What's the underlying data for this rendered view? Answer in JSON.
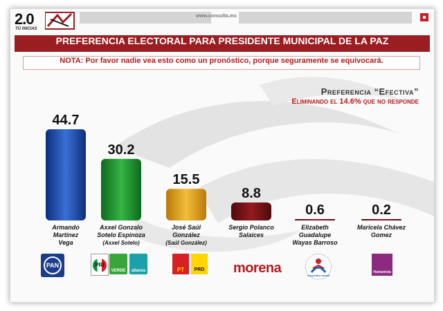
{
  "header": {
    "logo_number": "2.0",
    "logo_sub": "TÚ INICIAS",
    "url": "www.consulta.mx"
  },
  "title": "PREFERENCIA ELECTORAL PARA PRESIDENTE MUNICIPAL DE LA PAZ",
  "note": "NOTA: Por favor nadie vea esto como un pronóstico, porque seguramente se equivocará.",
  "preference": {
    "title": "Preferencia “Efectiva”",
    "subtitle": "Eliminando el 14.6% que no responde"
  },
  "candidates": [
    {
      "name": "Armando Martínez Vega",
      "lines": [
        "Armando",
        "Martínez",
        "Vega"
      ],
      "nickname": ""
    },
    {
      "name": "Axxel Gonzalo Sotelo Espinoza",
      "lines": [
        "Axxel Gonzalo",
        "Sotelo Espinoza"
      ],
      "nickname": "(Axxel Sotelo)"
    },
    {
      "name": "José Saúl González",
      "lines": [
        "José Saúl",
        "González"
      ],
      "nickname": "(Saúl González)"
    },
    {
      "name": "Sergio Polanco Salaices",
      "lines": [
        "Sergio Polanco",
        "Salaices"
      ],
      "nickname": ""
    },
    {
      "name": "Elizabeth Guadalupe Wayas Barroso",
      "lines": [
        "Elizabeth",
        "Guadalupe",
        "Wayas Barroso"
      ],
      "nickname": ""
    },
    {
      "name": "Maricela Chávez Gomez",
      "lines": [
        "Maricela Chávez",
        "Gomez"
      ],
      "nickname": ""
    }
  ],
  "parties": {
    "pan": "PAN",
    "pri": "PRI",
    "verde": "VERDE",
    "alianza": "alianza",
    "pt": "PT",
    "prd": "PRD",
    "morena": "morena",
    "ps": "encuentro social",
    "humanista": "Humanista"
  },
  "colors": {
    "title_bg": "#9a1d22",
    "note_text": "#b01c1c",
    "bar_colors": [
      "#1f4fb0",
      "#1f8f2a",
      "#e4a21b",
      "#7a1216",
      "#7a1216",
      "#7a1216"
    ]
  },
  "chart_data": {
    "type": "bar",
    "title": "PREFERENCIA ELECTORAL PARA PRESIDENTE MUNICIPAL DE LA PAZ",
    "categories": [
      "Armando Martínez Vega",
      "Axxel Gonzalo Sotelo Espinoza",
      "José Saúl González",
      "Sergio Polanco Salaices",
      "Elizabeth Guadalupe Wayas Barroso",
      "Maricela Chávez Gomez"
    ],
    "values": [
      44.7,
      30.2,
      15.5,
      8.8,
      0.6,
      0.2
    ],
    "value_labels": [
      "44.7",
      "30.2",
      "15.5",
      "8.8",
      "0.6",
      "0.2"
    ],
    "xlabel": "",
    "ylabel": "",
    "ylim": [
      0,
      44.7
    ],
    "grid": false,
    "legend": "none"
  }
}
